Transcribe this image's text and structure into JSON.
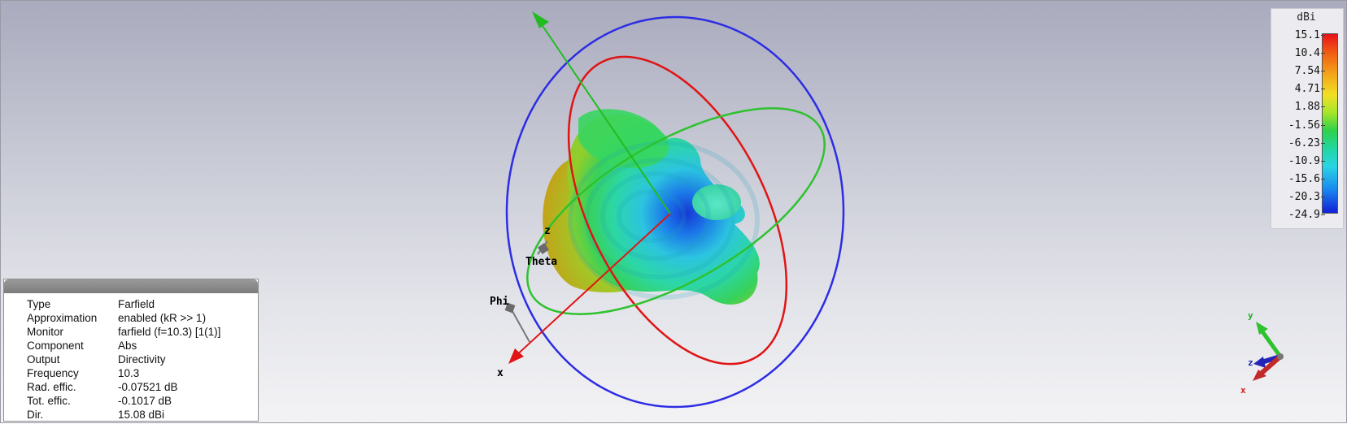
{
  "scene": {
    "axis_labels": {
      "z": "z",
      "theta": "Theta",
      "phi": "Phi",
      "x": "x"
    },
    "orientation_triad": {
      "y": "y",
      "z": "z",
      "x": "x"
    },
    "colors": {
      "x_axis": "#e01414",
      "y_axis": "#22bb22",
      "z_axis": "#2323e0"
    }
  },
  "legend": {
    "unit": "dBi",
    "ticks": [
      "15.1",
      "10.4",
      "7.54",
      "4.71",
      "1.88",
      "-1.56",
      "-6.23",
      "-10.9",
      "-15.6",
      "-20.3",
      "-24.9"
    ]
  },
  "info": {
    "rows": [
      {
        "key": "Type",
        "value": "Farfield"
      },
      {
        "key": "Approximation",
        "value": "enabled (kR >> 1)"
      },
      {
        "key": "Monitor",
        "value": "farfield (f=10.3) [1(1)]"
      },
      {
        "key": "Component",
        "value": "Abs"
      },
      {
        "key": "Output",
        "value": "Directivity"
      },
      {
        "key": "Frequency",
        "value": "10.3"
      },
      {
        "key": "Rad. effic.",
        "value": "-0.07521 dB"
      },
      {
        "key": "Tot. effic.",
        "value": "-0.1017 dB"
      },
      {
        "key": "Dir.",
        "value": "15.08 dBi"
      }
    ]
  }
}
